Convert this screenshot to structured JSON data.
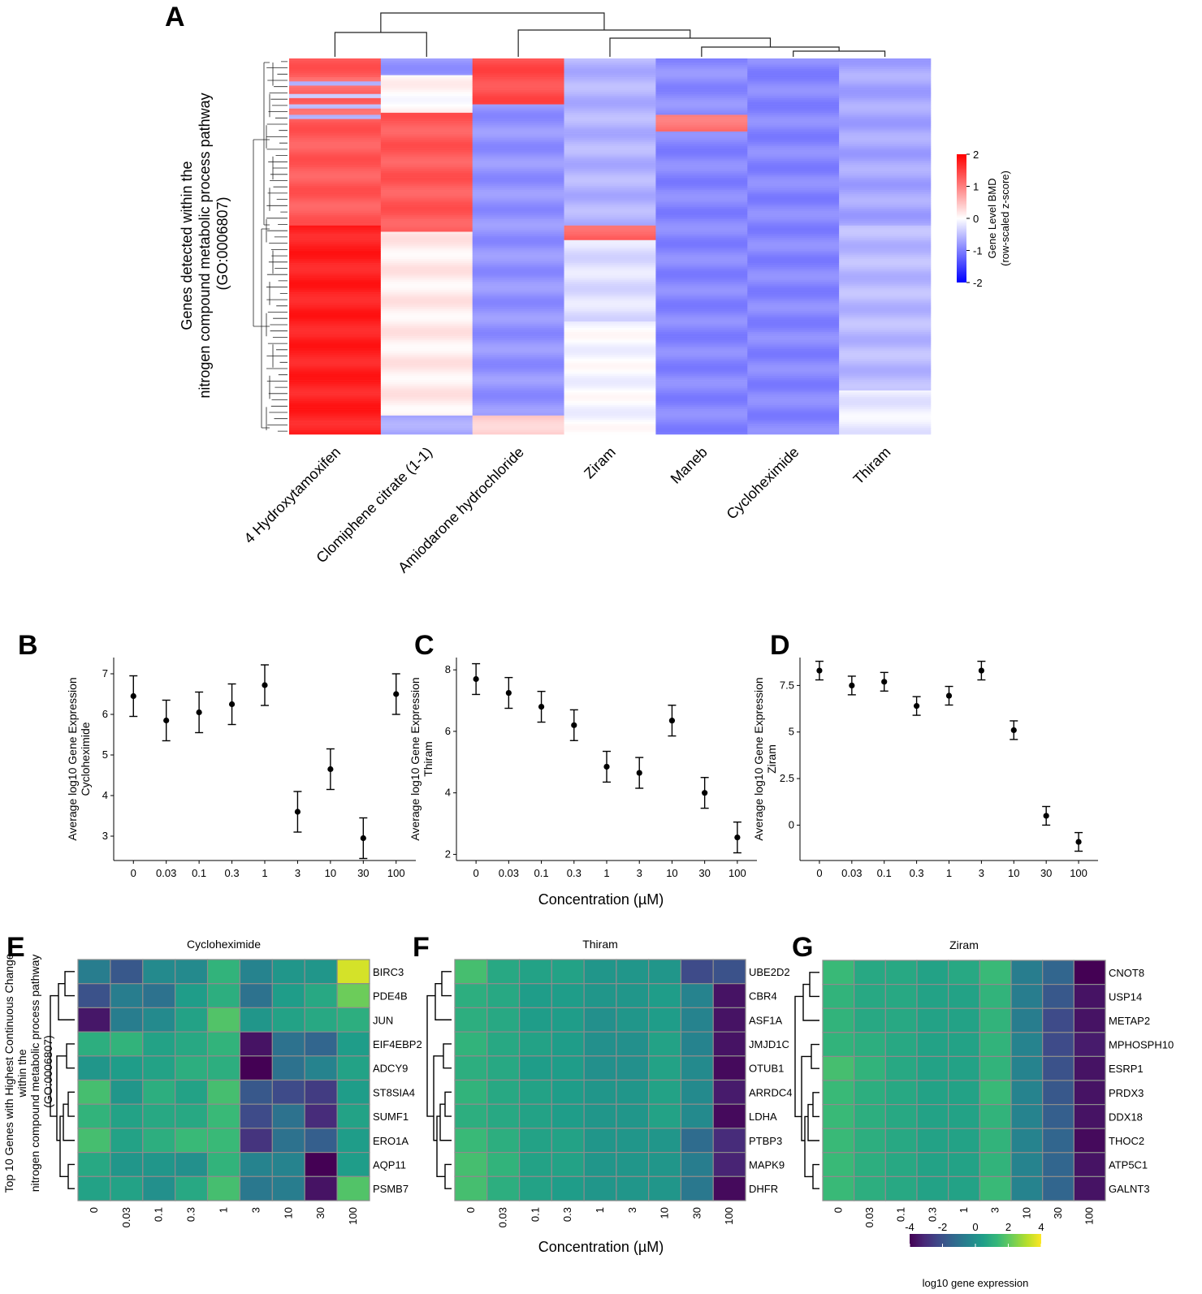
{
  "figure": {
    "panel_letters": [
      "A",
      "B",
      "C",
      "D",
      "E",
      "F",
      "G"
    ],
    "shared_xlabel_scatter": "Concentration (µM)",
    "shared_xlabel_heatmaps": "Concentration (µM)"
  },
  "chart_data": [
    {
      "panel": "A",
      "type": "heatmap",
      "ylabel": [
        "Genes detected within the",
        "nitrogen compound metabolic process pathway",
        "(GO:0006807)"
      ],
      "columns": [
        "4 Hydroxytamoxifen",
        "Clomiphene citrate (1-1)",
        "Amiodarone hydrochloride",
        "Ziram",
        "Maneb",
        "Cycloheximide",
        "Thiram"
      ],
      "colorbar": {
        "title": [
          "Gene Level BMD",
          "(row-scaled z-score)"
        ],
        "ticks": [
          2,
          1,
          0,
          -1,
          -2
        ],
        "range": [
          -2,
          2
        ],
        "colors": [
          "#0000ff",
          "#ffffff",
          "#ff0000"
        ]
      }
    },
    {
      "panel": "B",
      "type": "scatter",
      "ylabel": [
        "Average log10 Gene Expression",
        "Cycloheximide"
      ],
      "categories": [
        "0",
        "0.03",
        "0.1",
        "0.3",
        "1",
        "3",
        "10",
        "30",
        "100"
      ],
      "values": [
        6.45,
        5.85,
        6.05,
        6.25,
        6.72,
        3.6,
        4.65,
        2.95,
        6.5
      ],
      "error": [
        0.5,
        0.5,
        0.5,
        0.5,
        0.5,
        0.5,
        0.5,
        0.5,
        0.5
      ],
      "ylim": [
        2.4,
        7.4
      ],
      "yticks": [
        3,
        4,
        5,
        6,
        7
      ]
    },
    {
      "panel": "C",
      "type": "scatter",
      "ylabel": [
        "Average log10 Gene Expression",
        "Thiram"
      ],
      "categories": [
        "0",
        "0.03",
        "0.1",
        "0.3",
        "1",
        "3",
        "10",
        "30",
        "100"
      ],
      "values": [
        7.7,
        7.25,
        6.8,
        6.2,
        4.85,
        4.65,
        6.35,
        4.0,
        2.55
      ],
      "error": [
        0.5,
        0.5,
        0.5,
        0.5,
        0.5,
        0.5,
        0.5,
        0.5,
        0.5
      ],
      "ylim": [
        1.8,
        8.4
      ],
      "yticks": [
        2,
        4,
        6,
        8
      ]
    },
    {
      "panel": "D",
      "type": "scatter",
      "ylabel": [
        "Average log10 Gene Expression",
        "Ziram"
      ],
      "categories": [
        "0",
        "0.03",
        "0.1",
        "0.3",
        "1",
        "3",
        "10",
        "30",
        "100"
      ],
      "values": [
        8.3,
        7.5,
        7.7,
        6.4,
        6.95,
        8.3,
        5.1,
        0.5,
        -0.9
      ],
      "error": [
        0.5,
        0.5,
        0.5,
        0.5,
        0.5,
        0.5,
        0.5,
        0.5,
        0.5
      ],
      "ylim": [
        -1.9,
        9.0
      ],
      "yticks": [
        0,
        2.5,
        5,
        7.5
      ],
      "ytick_labels": [
        "0",
        "2.5",
        "5",
        "7.5"
      ]
    },
    {
      "panel": "E",
      "type": "heatmap",
      "title": "Cycloheximide",
      "ylabel": [
        "Top 10 Genes with Highest Continuous Change",
        "within the",
        "nitrogen compound metabolic process pathway",
        "(GO:0006807)"
      ],
      "columns": [
        "0",
        "0.03",
        "0.1",
        "0.3",
        "1",
        "3",
        "10",
        "30",
        "100"
      ],
      "rows": [
        "BIRC3",
        "PDE4B",
        "JUN",
        "EIF4EBP2",
        "ADCY9",
        "ST8SIA4",
        "SUMF1",
        "ERO1A",
        "AQP11",
        "PSMB7"
      ],
      "values": [
        [
          -0.6,
          -1.8,
          -0.2,
          -0.2,
          1.2,
          -0.4,
          0.2,
          0.2,
          3.5
        ],
        [
          -2.0,
          -0.6,
          -1.0,
          0.4,
          1.0,
          -1.0,
          0.4,
          0.8,
          2.2
        ],
        [
          -3.5,
          -0.6,
          -0.2,
          0.6,
          1.8,
          0.2,
          0.6,
          0.8,
          1.0
        ],
        [
          1.0,
          1.2,
          0.6,
          0.8,
          1.2,
          -3.6,
          -1.0,
          -1.4,
          0.4
        ],
        [
          0.2,
          0.4,
          0.6,
          1.0,
          1.0,
          -4.0,
          -1.0,
          -0.4,
          0.6
        ],
        [
          1.6,
          0.2,
          1.0,
          0.6,
          1.6,
          -1.8,
          -2.2,
          -2.6,
          0.4
        ],
        [
          1.2,
          0.6,
          0.8,
          0.8,
          1.4,
          -2.2,
          -1.0,
          -3.0,
          0.6
        ],
        [
          1.6,
          0.6,
          1.0,
          1.4,
          1.4,
          -2.8,
          -1.0,
          -1.6,
          0.4
        ],
        [
          0.8,
          0.2,
          0.2,
          0.0,
          1.2,
          -0.4,
          -0.4,
          -4.0,
          0.4
        ],
        [
          0.6,
          0.6,
          0.0,
          0.8,
          1.6,
          -0.8,
          -0.6,
          -3.6,
          1.8
        ]
      ]
    },
    {
      "panel": "F",
      "type": "heatmap",
      "title": "Thiram",
      "columns": [
        "0",
        "0.03",
        "0.1",
        "0.3",
        "1",
        "3",
        "10",
        "30",
        "100"
      ],
      "rows": [
        "UBE2D2",
        "CBR4",
        "ASF1A",
        "JMJD1C",
        "OTUB1",
        "ARRDC4",
        "LDHA",
        "PTBP3",
        "MAPK9",
        "DHFR"
      ],
      "values": [
        [
          1.6,
          0.8,
          0.6,
          0.6,
          0.2,
          0.2,
          0.2,
          -2.2,
          -2.0
        ],
        [
          1.0,
          0.8,
          0.4,
          0.4,
          0.2,
          0.2,
          0.4,
          -0.4,
          -3.6
        ],
        [
          1.0,
          0.8,
          0.4,
          0.4,
          0.0,
          0.2,
          0.4,
          -0.4,
          -3.6
        ],
        [
          1.2,
          0.8,
          0.6,
          0.4,
          0.0,
          0.0,
          0.6,
          -0.4,
          -3.6
        ],
        [
          1.0,
          0.8,
          0.4,
          0.4,
          0.0,
          0.0,
          0.6,
          -0.2,
          -3.8
        ],
        [
          1.2,
          0.8,
          0.6,
          0.4,
          0.2,
          0.2,
          0.6,
          -0.2,
          -3.4
        ],
        [
          1.0,
          0.8,
          0.6,
          0.4,
          0.2,
          0.2,
          0.6,
          -0.2,
          -3.8
        ],
        [
          1.4,
          1.0,
          0.6,
          0.6,
          0.2,
          0.2,
          0.2,
          -1.2,
          -3.0
        ],
        [
          1.6,
          1.2,
          0.6,
          0.6,
          0.2,
          0.2,
          0.2,
          -0.6,
          -3.2
        ],
        [
          1.6,
          1.0,
          0.6,
          0.4,
          0.2,
          0.2,
          0.2,
          -0.8,
          -3.8
        ]
      ]
    },
    {
      "panel": "G",
      "type": "heatmap",
      "title": "Ziram",
      "columns": [
        "0",
        "0.03",
        "0.1",
        "0.3",
        "1",
        "3",
        "10",
        "30",
        "100"
      ],
      "rows": [
        "CNOT8",
        "USP14",
        "METAP2",
        "MPHOSPH10",
        "ESRP1",
        "PRDX3",
        "DDX18",
        "THOC2",
        "ATP5C1",
        "GALNT3"
      ],
      "values": [
        [
          1.4,
          0.8,
          0.8,
          0.6,
          0.8,
          1.4,
          -0.6,
          -1.4,
          -4.0
        ],
        [
          1.2,
          0.8,
          0.8,
          0.6,
          0.6,
          1.2,
          -0.6,
          -1.8,
          -3.6
        ],
        [
          1.2,
          0.8,
          0.8,
          0.6,
          0.6,
          1.2,
          -0.6,
          -2.2,
          -3.6
        ],
        [
          1.2,
          1.0,
          0.8,
          0.6,
          0.6,
          1.2,
          -0.4,
          -2.2,
          -3.4
        ],
        [
          1.6,
          1.2,
          0.8,
          0.6,
          0.6,
          1.2,
          -0.4,
          -2.0,
          -3.6
        ],
        [
          1.4,
          1.0,
          0.8,
          0.6,
          0.6,
          1.4,
          -0.4,
          -1.8,
          -3.6
        ],
        [
          1.4,
          1.0,
          0.8,
          0.6,
          0.6,
          1.2,
          -0.4,
          -1.6,
          -3.6
        ],
        [
          1.4,
          1.0,
          0.8,
          0.6,
          0.6,
          1.2,
          -0.4,
          -1.4,
          -3.8
        ],
        [
          1.4,
          1.0,
          0.8,
          0.6,
          0.6,
          1.2,
          -0.4,
          -1.4,
          -3.6
        ],
        [
          1.4,
          1.0,
          0.8,
          0.6,
          0.6,
          1.4,
          -0.4,
          -1.4,
          -3.6
        ]
      ],
      "colorbar": {
        "title": "log10 gene expression",
        "ticks": [
          -4,
          -2,
          0,
          2,
          4
        ],
        "range": [
          -4,
          4
        ],
        "colormap": "viridis"
      }
    }
  ]
}
